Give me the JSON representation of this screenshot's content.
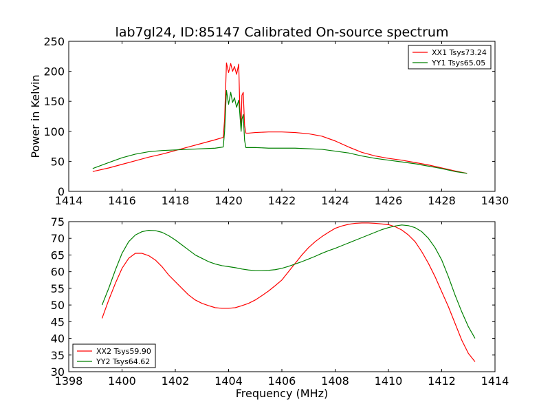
{
  "chart_data": [
    {
      "type": "line",
      "title": "lab7gl24, ID:85147 Calibrated On-source spectrum",
      "xlabel": "",
      "ylabel": "Power in Kelvin",
      "xlim": [
        1414,
        1430
      ],
      "ylim": [
        0,
        250
      ],
      "xticks": [
        1414,
        1416,
        1418,
        1420,
        1422,
        1424,
        1426,
        1428,
        1430
      ],
      "yticks": [
        0,
        50,
        100,
        150,
        200,
        250
      ],
      "legend_position": "top-right",
      "series": [
        {
          "name": "XX1 Tsys73.24",
          "color": "#ff0000",
          "x": [
            1414.9,
            1415.5,
            1416.0,
            1416.5,
            1417.0,
            1417.5,
            1418.0,
            1418.5,
            1419.0,
            1419.5,
            1419.8,
            1419.85,
            1419.92,
            1420.0,
            1420.08,
            1420.15,
            1420.22,
            1420.3,
            1420.38,
            1420.42,
            1420.47,
            1420.5,
            1420.55,
            1420.6,
            1420.65,
            1420.75,
            1421.0,
            1421.5,
            1422.0,
            1422.5,
            1423.0,
            1423.5,
            1424.0,
            1424.5,
            1425.0,
            1425.5,
            1426.0,
            1426.5,
            1427.0,
            1427.5,
            1428.0,
            1428.5,
            1428.95
          ],
          "values": [
            33,
            39,
            45,
            51,
            57,
            62,
            68,
            74,
            80,
            86,
            90,
            120,
            214,
            198,
            213,
            200,
            208,
            195,
            212,
            140,
            110,
            160,
            165,
            110,
            97,
            97,
            98,
            99,
            99,
            98,
            96,
            92,
            84,
            74,
            65,
            59,
            55,
            52,
            48,
            44,
            39,
            34,
            30
          ]
        },
        {
          "name": "YY1 Tsys65.05",
          "color": "#008000",
          "x": [
            1414.9,
            1415.5,
            1416.0,
            1416.5,
            1417.0,
            1417.5,
            1418.0,
            1418.5,
            1419.0,
            1419.5,
            1419.8,
            1419.85,
            1419.92,
            1420.0,
            1420.08,
            1420.15,
            1420.22,
            1420.3,
            1420.38,
            1420.42,
            1420.47,
            1420.5,
            1420.55,
            1420.6,
            1420.65,
            1420.75,
            1421.0,
            1421.5,
            1422.0,
            1422.5,
            1423.0,
            1423.5,
            1424.0,
            1424.5,
            1425.0,
            1425.5,
            1426.0,
            1426.5,
            1427.0,
            1427.5,
            1428.0,
            1428.5,
            1428.95
          ],
          "values": [
            38,
            48,
            56,
            62,
            66,
            68,
            69,
            70,
            71,
            72,
            74,
            100,
            168,
            145,
            165,
            148,
            156,
            140,
            152,
            130,
            100,
            120,
            128,
            85,
            73,
            73,
            73,
            72,
            72,
            72,
            71,
            70,
            67,
            64,
            59,
            55,
            52,
            49,
            46,
            42,
            38,
            33,
            30
          ]
        }
      ]
    },
    {
      "type": "line",
      "title": "",
      "xlabel": "Frequency (MHz)",
      "ylabel": "",
      "xlim": [
        1398,
        1414
      ],
      "ylim": [
        30,
        75
      ],
      "xticks": [
        1398,
        1400,
        1402,
        1404,
        1406,
        1408,
        1410,
        1412,
        1414
      ],
      "yticks": [
        30,
        35,
        40,
        45,
        50,
        55,
        60,
        65,
        70,
        75
      ],
      "legend_position": "bottom-left",
      "series": [
        {
          "name": "XX2 Tsys59.90",
          "color": "#ff0000",
          "x": [
            1399.25,
            1399.5,
            1399.75,
            1400.0,
            1400.25,
            1400.5,
            1400.75,
            1401.0,
            1401.25,
            1401.5,
            1401.75,
            1402.0,
            1402.25,
            1402.5,
            1402.75,
            1403.0,
            1403.25,
            1403.5,
            1403.75,
            1404.0,
            1404.25,
            1404.5,
            1404.75,
            1405.0,
            1405.25,
            1405.5,
            1405.75,
            1406.0,
            1406.25,
            1406.5,
            1406.75,
            1407.0,
            1407.25,
            1407.5,
            1407.75,
            1408.0,
            1408.25,
            1408.5,
            1408.75,
            1409.0,
            1409.25,
            1409.5,
            1409.75,
            1410.0,
            1410.25,
            1410.5,
            1410.75,
            1411.0,
            1411.25,
            1411.5,
            1411.75,
            1412.0,
            1412.25,
            1412.5,
            1412.75,
            1413.0,
            1413.25
          ],
          "values": [
            46,
            51.5,
            56.5,
            61,
            64,
            65.5,
            65.5,
            64.8,
            63.5,
            61.5,
            59,
            57,
            55,
            53,
            51.5,
            50.5,
            49.8,
            49.2,
            49,
            49,
            49.2,
            49.8,
            50.5,
            51.5,
            52.8,
            54.2,
            55.8,
            57.5,
            60,
            62.5,
            65,
            67.2,
            69,
            70.5,
            71.8,
            73,
            73.7,
            74.2,
            74.5,
            74.6,
            74.6,
            74.5,
            74.3,
            74.1,
            73.5,
            72.5,
            71,
            69,
            66,
            62.5,
            58.5,
            54,
            49.5,
            44.5,
            39.5,
            35.5,
            33
          ]
        },
        {
          "name": "YY2 Tsys64.62",
          "color": "#008000",
          "x": [
            1399.25,
            1399.5,
            1399.75,
            1400.0,
            1400.25,
            1400.5,
            1400.75,
            1401.0,
            1401.25,
            1401.5,
            1401.75,
            1402.0,
            1402.25,
            1402.5,
            1402.75,
            1403.0,
            1403.25,
            1403.5,
            1403.75,
            1404.0,
            1404.25,
            1404.5,
            1404.75,
            1405.0,
            1405.25,
            1405.5,
            1405.75,
            1406.0,
            1406.25,
            1406.5,
            1406.75,
            1407.0,
            1407.25,
            1407.5,
            1407.75,
            1408.0,
            1408.25,
            1408.5,
            1408.75,
            1409.0,
            1409.25,
            1409.5,
            1409.75,
            1410.0,
            1410.25,
            1410.5,
            1410.75,
            1411.0,
            1411.25,
            1411.5,
            1411.75,
            1412.0,
            1412.25,
            1412.5,
            1412.75,
            1413.0,
            1413.25
          ],
          "values": [
            50,
            55,
            60.5,
            65.5,
            69,
            71,
            72,
            72.4,
            72.3,
            71.8,
            70.8,
            69.5,
            68,
            66.5,
            65,
            64,
            63,
            62.3,
            61.8,
            61.5,
            61.2,
            60.8,
            60.5,
            60.3,
            60.3,
            60.4,
            60.6,
            61,
            61.6,
            62.3,
            63,
            63.8,
            64.6,
            65.5,
            66.3,
            67,
            67.8,
            68.6,
            69.4,
            70.2,
            71,
            71.8,
            72.6,
            73.2,
            73.7,
            74,
            73.8,
            73.2,
            72,
            70,
            67.2,
            63.5,
            58.5,
            53,
            48,
            43.5,
            40
          ]
        }
      ]
    }
  ]
}
